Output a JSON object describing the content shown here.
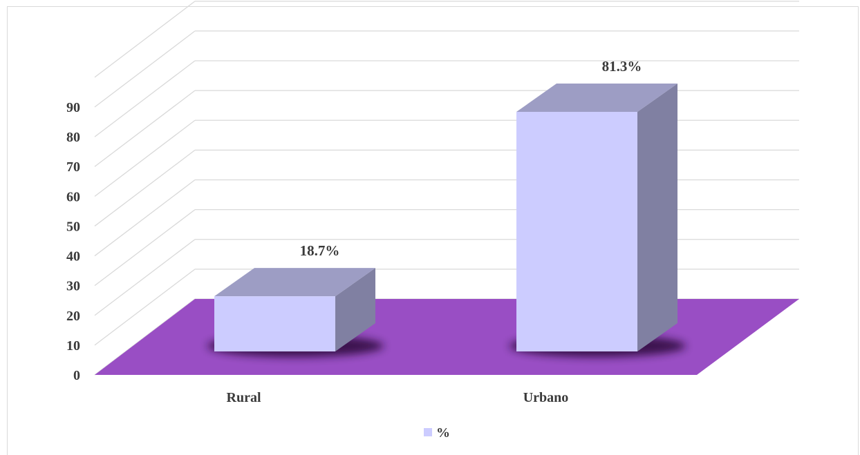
{
  "chart_data": {
    "type": "bar",
    "style": "3d-column",
    "categories": [
      "Rural",
      "Urbano"
    ],
    "series": [
      {
        "name": "%",
        "values": [
          18.7,
          81.3
        ],
        "labels": [
          "18.7%",
          "81.3%"
        ]
      }
    ],
    "yticks": [
      "0",
      "10",
      "20",
      "30",
      "40",
      "50",
      "60",
      "70",
      "80",
      "90"
    ],
    "ylim": [
      0,
      90
    ],
    "grid": true,
    "legend": "bottom",
    "colors": {
      "bar_front": "#ccccff",
      "bar_top": "#9d9dc4",
      "bar_side": "#8080a2",
      "floor": "#994ec4",
      "grid": "#d9d9d9",
      "text": "#3a3a3a"
    }
  }
}
